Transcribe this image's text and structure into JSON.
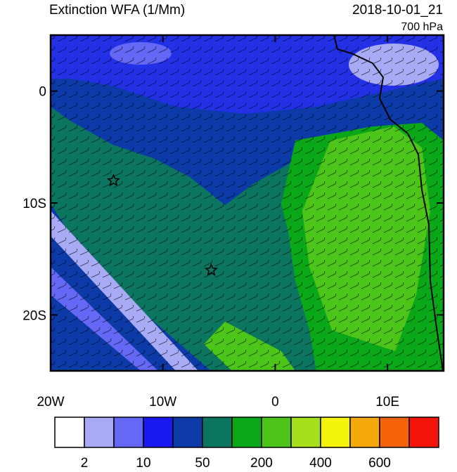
{
  "title": "Extinction WFA (1/Mm)",
  "timestamp": "2018-10-01_21",
  "level": "700 hPa",
  "map": {
    "lonlim": [
      -20,
      15
    ],
    "latlim": [
      -25,
      5
    ],
    "lon_ticks": [
      {
        "value": -20,
        "label": "20W"
      },
      {
        "value": -10,
        "label": "10W"
      },
      0,
      {
        "value": 10,
        "label": "10E"
      }
    ],
    "lat_ticks": [
      0,
      {
        "value": -10,
        "label": "10S"
      },
      {
        "value": -20,
        "label": "20S"
      }
    ],
    "markers": [
      {
        "lon": -14.4,
        "lat": -8
      },
      {
        "lon": -5.7,
        "lat": -16
      }
    ]
  },
  "colorbar": {
    "colors": [
      "#ffffff",
      "#a8aaf6",
      "#6468f4",
      "#1818f0",
      "#0c3aa6",
      "#0b7560",
      "#0aa818",
      "#4cc418",
      "#a6e01c",
      "#f4f40a",
      "#f4a80a",
      "#f4620a",
      "#f4140a"
    ],
    "ticks": [
      2,
      10,
      50,
      200,
      400,
      600
    ]
  }
}
